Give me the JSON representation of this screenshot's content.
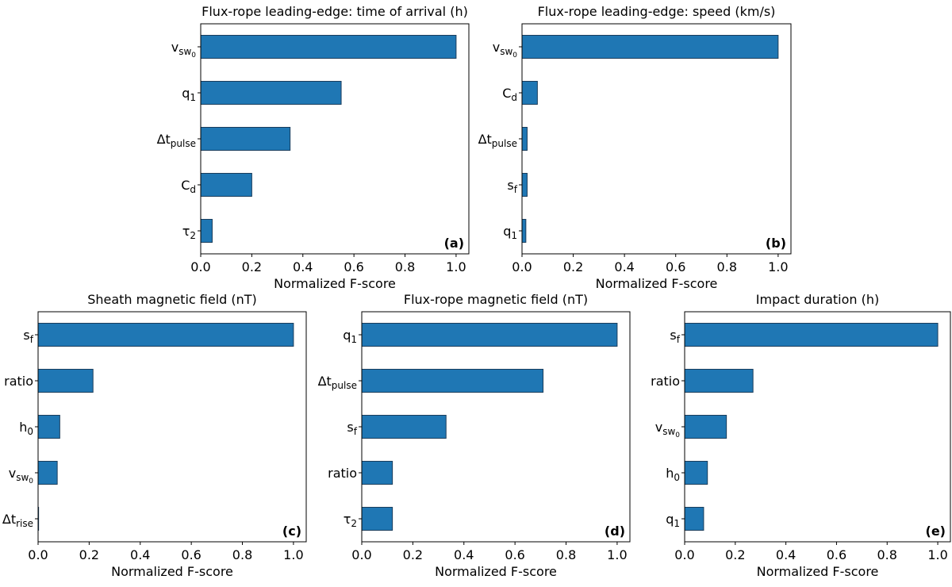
{
  "chart_data": [
    {
      "type": "barh",
      "title": "Flux-rope leading-edge: time of arrival (h)",
      "xlabel": "Normalized F-score",
      "panel_label": "(a)",
      "categories": [
        {
          "base": "v",
          "sub": "sw",
          "subsub": "0"
        },
        {
          "base": "q",
          "sub": "1"
        },
        {
          "base": "Δt",
          "sub": "pulse"
        },
        {
          "base": "C",
          "sub": "d"
        },
        {
          "base": "τ",
          "sub": "2"
        }
      ],
      "values": [
        1.0,
        0.55,
        0.35,
        0.2,
        0.045
      ],
      "color": "#1f77b4",
      "xlim": [
        0,
        1.05
      ],
      "xticks": [
        {
          "value": 0,
          "label": "0.0"
        },
        {
          "value": 0.2,
          "label": "0.2"
        },
        {
          "value": 0.4,
          "label": "0.4"
        },
        {
          "value": 0.6,
          "label": "0.6"
        },
        {
          "value": 0.8,
          "label": "0.8"
        },
        {
          "value": 1,
          "label": "1.0"
        }
      ]
    },
    {
      "type": "barh",
      "title": "Flux-rope leading-edge: speed (km/s)",
      "xlabel": "Normalized F-score",
      "panel_label": "(b)",
      "categories": [
        {
          "base": "v",
          "sub": "sw",
          "subsub": "0"
        },
        {
          "base": "C",
          "sub": "d"
        },
        {
          "base": "Δt",
          "sub": "pulse"
        },
        {
          "base": "s",
          "sub": "f"
        },
        {
          "base": "q",
          "sub": "1"
        }
      ],
      "values": [
        1.0,
        0.06,
        0.02,
        0.02,
        0.015
      ],
      "color": "#1f77b4",
      "xlim": [
        0,
        1.05
      ],
      "xticks": [
        {
          "value": 0,
          "label": "0.0"
        },
        {
          "value": 0.2,
          "label": "0.2"
        },
        {
          "value": 0.4,
          "label": "0.4"
        },
        {
          "value": 0.6,
          "label": "0.6"
        },
        {
          "value": 0.8,
          "label": "0.8"
        },
        {
          "value": 1,
          "label": "1.0"
        }
      ]
    },
    {
      "type": "barh",
      "title": "Sheath magnetic field (nT)",
      "xlabel": "Normalized F-score",
      "panel_label": "(c)",
      "categories": [
        {
          "base": "s",
          "sub": "f"
        },
        "ratio",
        {
          "base": "h",
          "sub": "0"
        },
        {
          "base": "v",
          "sub": "sw",
          "subsub": "0"
        },
        {
          "base": "Δt",
          "sub": "rise"
        }
      ],
      "values": [
        1.0,
        0.215,
        0.085,
        0.075,
        0.002
      ],
      "color": "#1f77b4",
      "xlim": [
        0,
        1.05
      ],
      "xticks": [
        {
          "value": 0,
          "label": "0.0"
        },
        {
          "value": 0.2,
          "label": "0.2"
        },
        {
          "value": 0.4,
          "label": "0.4"
        },
        {
          "value": 0.6,
          "label": "0.6"
        },
        {
          "value": 0.8,
          "label": "0.8"
        },
        {
          "value": 1,
          "label": "1.0"
        }
      ]
    },
    {
      "type": "barh",
      "title": "Flux-rope magnetic field (nT)",
      "xlabel": "Normalized F-score",
      "panel_label": "(d)",
      "categories": [
        {
          "base": "q",
          "sub": "1"
        },
        {
          "base": "Δt",
          "sub": "pulse"
        },
        {
          "base": "s",
          "sub": "f"
        },
        "ratio",
        {
          "base": "τ",
          "sub": "2"
        }
      ],
      "values": [
        1.0,
        0.71,
        0.33,
        0.12,
        0.12
      ],
      "color": "#1f77b4",
      "xlim": [
        0,
        1.05
      ],
      "xticks": [
        {
          "value": 0,
          "label": "0.0"
        },
        {
          "value": 0.2,
          "label": "0.2"
        },
        {
          "value": 0.4,
          "label": "0.4"
        },
        {
          "value": 0.6,
          "label": "0.6"
        },
        {
          "value": 0.8,
          "label": "0.8"
        },
        {
          "value": 1,
          "label": "1.0"
        }
      ]
    },
    {
      "type": "barh",
      "title": "Impact duration (h)",
      "xlabel": "Normalized F-score",
      "panel_label": "(e)",
      "categories": [
        {
          "base": "s",
          "sub": "f"
        },
        "ratio",
        {
          "base": "v",
          "sub": "sw",
          "subsub": "0"
        },
        {
          "base": "h",
          "sub": "0"
        },
        {
          "base": "q",
          "sub": "1"
        }
      ],
      "values": [
        1.0,
        0.27,
        0.165,
        0.09,
        0.075
      ],
      "color": "#1f77b4",
      "xlim": [
        0,
        1.05
      ],
      "xticks": [
        {
          "value": 0,
          "label": "0.0"
        },
        {
          "value": 0.2,
          "label": "0.2"
        },
        {
          "value": 0.4,
          "label": "0.4"
        },
        {
          "value": 0.6,
          "label": "0.6"
        },
        {
          "value": 0.8,
          "label": "0.8"
        },
        {
          "value": 1,
          "label": "1.0"
        }
      ]
    }
  ]
}
